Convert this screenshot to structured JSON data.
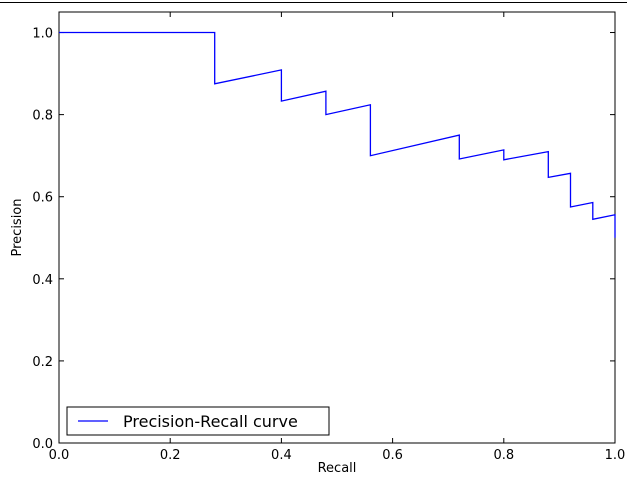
{
  "chart_data": {
    "type": "line",
    "xlabel": "Recall",
    "ylabel": "Precision",
    "xlim": [
      0.0,
      1.0
    ],
    "ylim": [
      0.0,
      1.05
    ],
    "xticks": [
      "0.0",
      "0.2",
      "0.4",
      "0.6",
      "0.8",
      "1.0"
    ],
    "yticks": [
      "0.0",
      "0.2",
      "0.4",
      "0.6",
      "0.8",
      "1.0"
    ],
    "legend_position": "lower-left",
    "grid": false,
    "series": [
      {
        "name": "Precision-Recall curve",
        "color": "#0000ff",
        "x": [
          0.0,
          0.28,
          0.28,
          0.4,
          0.4,
          0.48,
          0.48,
          0.56,
          0.56,
          0.72,
          0.72,
          0.8,
          0.8,
          0.88,
          0.88,
          0.92,
          0.92,
          0.96,
          0.96,
          1.0,
          1.0
        ],
        "y": [
          1.0,
          1.0,
          0.875,
          0.909,
          0.833,
          0.857,
          0.8,
          0.824,
          0.7,
          0.75,
          0.692,
          0.714,
          0.69,
          0.71,
          0.647,
          0.657,
          0.575,
          0.586,
          0.545,
          0.556,
          0.5
        ]
      }
    ]
  }
}
